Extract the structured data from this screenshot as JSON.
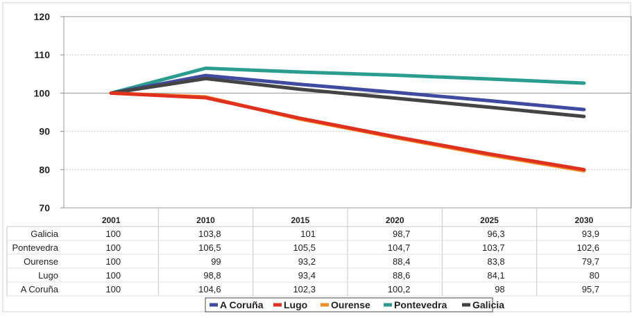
{
  "chart_data": {
    "type": "line",
    "categories": [
      "2001",
      "2010",
      "2015",
      "2020",
      "2025",
      "2030"
    ],
    "ylim": [
      70,
      120
    ],
    "yticks": [
      70,
      80,
      90,
      100,
      110,
      120
    ],
    "reference_line": 100,
    "grid": "horizontal",
    "legend_position": "bottom",
    "series": [
      {
        "name": "A Coruña",
        "color": "#3f4aa0",
        "values": [
          100,
          104.6,
          102.3,
          100.2,
          98,
          95.7
        ],
        "labels": [
          "100",
          "104,6",
          "102,3",
          "100,2",
          "98",
          "95,7"
        ]
      },
      {
        "name": "Lugo",
        "color": "#e0301e",
        "values": [
          100,
          98.8,
          93.4,
          88.6,
          84.1,
          80
        ],
        "labels": [
          "100",
          "98,8",
          "93,4",
          "88,6",
          "84,1",
          "80"
        ]
      },
      {
        "name": "Ourense",
        "color": "#f28c28",
        "values": [
          100,
          99,
          93.2,
          88.4,
          83.8,
          79.7
        ],
        "labels": [
          "100",
          "99",
          "93,2",
          "88,4",
          "83,8",
          "79,7"
        ]
      },
      {
        "name": "Pontevedra",
        "color": "#2a9d8f",
        "values": [
          100,
          106.5,
          105.5,
          104.7,
          103.7,
          102.6
        ],
        "labels": [
          "100",
          "106,5",
          "105,5",
          "104,7",
          "103,7",
          "102,6"
        ]
      },
      {
        "name": "Galicia",
        "color": "#444444",
        "values": [
          100,
          103.8,
          101,
          98.7,
          96.3,
          93.9
        ],
        "labels": [
          "100",
          "103,8",
          "101",
          "98,7",
          "96,3",
          "93,9"
        ]
      }
    ],
    "table_row_order": [
      "Galicia",
      "Pontevedra",
      "Ourense",
      "Lugo",
      "A Coruña"
    ]
  }
}
